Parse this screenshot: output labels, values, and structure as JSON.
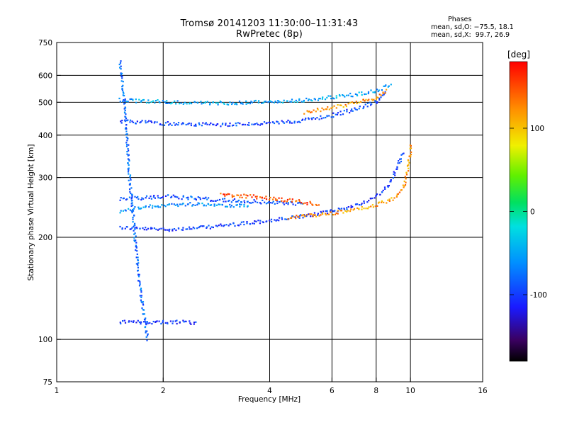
{
  "header": {
    "title_line1": "Tromsø 20141203 11:30:00–11:31:43",
    "title_line2": "RwPretec (8p)"
  },
  "phases_box": {
    "heading": "Phases",
    "line_o": "mean, sd,O: −75.5, 18.1",
    "line_x": "mean, sd,X:  99.7, 26.9"
  },
  "colorbar": {
    "unit": "[deg]",
    "tick_labels": [
      "100",
      "0",
      "-100"
    ],
    "tick_values": [
      100,
      0,
      -100
    ],
    "range": [
      -180,
      180
    ]
  },
  "chart_data": {
    "type": "scatter",
    "xlabel": "Frequency [MHz]",
    "ylabel": "Stationary phase Virtual Height [km]",
    "xscale": "log",
    "yscale": "log",
    "xlim": [
      1,
      16
    ],
    "ylim": [
      75,
      750
    ],
    "xticks": [
      1,
      2,
      4,
      6,
      8,
      10,
      16
    ],
    "xtick_labels": [
      "1",
      "2",
      "4",
      "6",
      "8",
      "10",
      "16"
    ],
    "yticks": [
      75,
      100,
      200,
      300,
      400,
      500,
      600,
      750
    ],
    "ytick_labels": [
      "75",
      "100",
      "200",
      "300",
      "400",
      "500",
      "600",
      "750"
    ],
    "grid": true,
    "color_variable": "phase [deg]",
    "traces": [
      {
        "x": [
          1.5,
          1.7,
          2.0,
          2.5,
          3.0,
          4.0,
          5.0,
          6.0,
          7.0,
          8.0,
          8.6,
          9.1,
          9.5
        ],
        "y": [
          215,
          213,
          212,
          214,
          218,
          225,
          232,
          240,
          250,
          265,
          285,
          320,
          360
        ],
        "phase": -100
      },
      {
        "x": [
          4.5,
          6.0,
          7.0,
          8.0,
          9.0,
          9.5,
          9.8,
          10.0
        ],
        "y": [
          230,
          236,
          243,
          250,
          262,
          280,
          320,
          380
        ],
        "phase": 120
      },
      {
        "x": [
          1.5,
          1.7,
          2.0,
          2.5,
          3.0,
          3.5
        ],
        "y": [
          240,
          245,
          250,
          252,
          250,
          248
        ],
        "phase": -60
      },
      {
        "x": [
          1.5,
          1.7,
          2.0,
          2.5,
          3.0,
          4.0,
          5.0
        ],
        "y": [
          260,
          262,
          265,
          262,
          258,
          255,
          252
        ],
        "phase": -90
      },
      {
        "x": [
          2.9,
          3.5,
          4.0,
          4.5,
          5.0,
          5.5
        ],
        "y": [
          268,
          265,
          262,
          258,
          255,
          250
        ],
        "phase": 150
      },
      {
        "x": [
          1.5,
          1.8,
          2.0,
          2.5,
          3.0,
          4.0,
          5.0,
          6.0,
          7.0,
          8.0,
          8.5
        ],
        "y": [
          440,
          440,
          435,
          432,
          432,
          435,
          445,
          460,
          480,
          505,
          540
        ],
        "phase": -95
      },
      {
        "x": [
          1.5,
          1.8,
          2.0,
          2.5,
          3.0,
          4.0,
          5.0,
          6.0,
          7.0,
          8.0,
          8.8
        ],
        "y": [
          510,
          505,
          505,
          500,
          500,
          505,
          510,
          520,
          530,
          545,
          570
        ],
        "phase": -50
      },
      {
        "x": [
          5.0,
          6.0,
          7.0,
          8.0,
          8.6
        ],
        "y": [
          470,
          485,
          500,
          520,
          545
        ],
        "phase": 120
      },
      {
        "x": [
          1.5,
          1.7,
          1.9,
          2.0,
          2.3,
          2.5
        ],
        "y": [
          113,
          113,
          113,
          113,
          113,
          112
        ],
        "phase": -100
      },
      {
        "x": [
          1.5,
          1.55,
          1.6,
          1.7,
          1.8
        ],
        "y": [
          660,
          500,
          300,
          150,
          100
        ],
        "phase": -80
      }
    ]
  }
}
